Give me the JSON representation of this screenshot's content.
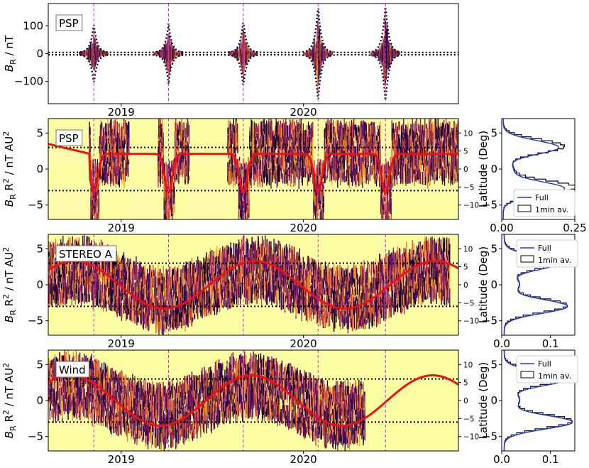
{
  "figure": {
    "x_tick_labels": [
      "2019",
      "2020"
    ],
    "year_ticks": [
      2019,
      2020
    ],
    "time_range": [
      2018.6,
      2020.85
    ],
    "perihelia": [
      2018.85,
      2019.26,
      2019.67,
      2020.08,
      2020.45
    ]
  },
  "chart_data": [
    {
      "type": "line",
      "panel": "psp_br",
      "box_label": "PSP",
      "ylabel": "B_R / nT",
      "ylabel_main": "B",
      "ylabel_sub": "R",
      "ylabel_rest": " / nT",
      "ylim": [
        -180,
        180
      ],
      "y_ticks": [
        100,
        0,
        -100
      ],
      "y_tick_labels": [
        "100",
        "0",
        "−100"
      ],
      "envelope_peaks_nT": [
        105,
        105,
        115,
        170,
        175
      ],
      "envelope_line": "black dotted",
      "perihelion_markers": "magenta dashed"
    },
    {
      "type": "heatmap",
      "panel": "psp_br_r2",
      "box_label": "PSP",
      "ylabel_main": "B",
      "ylabel_sub": "R",
      "ylabel_rest": " R",
      "ylabel_sup": "2",
      "ylabel_unit": " / nT AU",
      "ylim": [
        -7,
        7
      ],
      "y_ticks": [
        5,
        0,
        -5
      ],
      "y_tick_labels": [
        "5",
        "0",
        "−5"
      ],
      "right_axis": {
        "label": "Latitude (Deg)",
        "ticks": [
          10,
          5,
          0,
          -5,
          -10
        ],
        "tick_labels": [
          "10",
          "5",
          "0",
          "−5",
          "−10"
        ]
      },
      "reference_lines": [
        3,
        -3
      ],
      "latitude_curve": "red",
      "colormap": "inferno",
      "data_gaps": [
        [
          2018.6,
          2018.82
        ],
        [
          2019.04,
          2019.2
        ],
        [
          2019.37,
          2019.58
        ]
      ]
    },
    {
      "type": "heatmap",
      "panel": "stereo_br_r2",
      "box_label": "STEREO A",
      "ylabel_main": "B",
      "ylabel_sub": "R",
      "ylabel_rest": " R",
      "ylabel_sup": "2",
      "ylabel_unit": " / nT AU",
      "ylim": [
        -7,
        7
      ],
      "y_ticks": [
        5,
        0,
        -5
      ],
      "y_tick_labels": [
        "5",
        "0",
        "−5"
      ],
      "right_axis": {
        "label": "Latitude (Deg)",
        "ticks": [
          10,
          5,
          0,
          -5,
          -10
        ],
        "tick_labels": [
          "10",
          "5",
          "0",
          "−5",
          "−10"
        ]
      },
      "reference_lines": [
        3,
        -3
      ],
      "latitude_curve": "red",
      "colormap": "inferno",
      "data_end": 2020.8
    },
    {
      "type": "heatmap",
      "panel": "wind_br_r2",
      "box_label": "Wind",
      "ylabel_main": "B",
      "ylabel_sub": "R",
      "ylabel_rest": " R",
      "ylabel_sup": "2",
      "ylabel_unit": " / nT AU",
      "ylim": [
        -7,
        7
      ],
      "y_ticks": [
        5,
        0,
        -5
      ],
      "y_tick_labels": [
        "5",
        "0",
        "−5"
      ],
      "right_axis": {
        "label": "Latitude (Deg)",
        "ticks": [
          10,
          5,
          0,
          -5,
          -10
        ],
        "tick_labels": [
          "10",
          "5",
          "0",
          "−5",
          "−10"
        ]
      },
      "reference_lines": [
        3,
        -3
      ],
      "latitude_curve": "red",
      "colormap": "inferno",
      "data_end": 2020.34
    },
    {
      "type": "line",
      "panel": "psp_hist",
      "legend": [
        "Full",
        "1min av."
      ],
      "ylim": [
        -7,
        7
      ],
      "y_ticks": [
        5,
        0,
        -5
      ],
      "y_tick_labels": [
        "5",
        "0",
        "−5"
      ],
      "xlim": [
        0,
        0.25
      ],
      "x_ticks": [
        0.0,
        0.25
      ],
      "x_tick_labels": [
        "0.00",
        "0.25"
      ],
      "peaks": [
        {
          "y": 3.0,
          "full": 0.19,
          "avg": 0.21
        },
        {
          "y": -2.7,
          "full": 0.21,
          "avg": 0.25
        }
      ]
    },
    {
      "type": "line",
      "panel": "stereo_hist",
      "legend": [
        "Full",
        "1min av."
      ],
      "ylim": [
        -7,
        7
      ],
      "y_ticks": [
        5,
        0,
        -5
      ],
      "y_tick_labels": [
        "5",
        "0",
        "−5"
      ],
      "xlim": [
        0,
        0.15
      ],
      "x_ticks": [
        0.0,
        0.1
      ],
      "x_tick_labels": [
        "0.0",
        "0.1"
      ],
      "peaks": [
        {
          "y": 3.0,
          "full": 0.11,
          "avg": 0.11
        },
        {
          "y": -3.0,
          "full": 0.13,
          "avg": 0.13
        }
      ]
    },
    {
      "type": "line",
      "panel": "wind_hist",
      "legend": [
        "Full",
        "1min av."
      ],
      "ylim": [
        -7,
        7
      ],
      "y_ticks": [
        5,
        0,
        -5
      ],
      "y_tick_labels": [
        "5",
        "0",
        "−5"
      ],
      "xlim": [
        0,
        0.15
      ],
      "x_ticks": [
        0.0,
        0.1
      ],
      "x_tick_labels": [
        "0.0",
        "0.1"
      ],
      "peaks": [
        {
          "y": 3.0,
          "full": 0.13,
          "avg": 0.13
        },
        {
          "y": -3.0,
          "full": 0.14,
          "avg": 0.14
        }
      ]
    }
  ]
}
